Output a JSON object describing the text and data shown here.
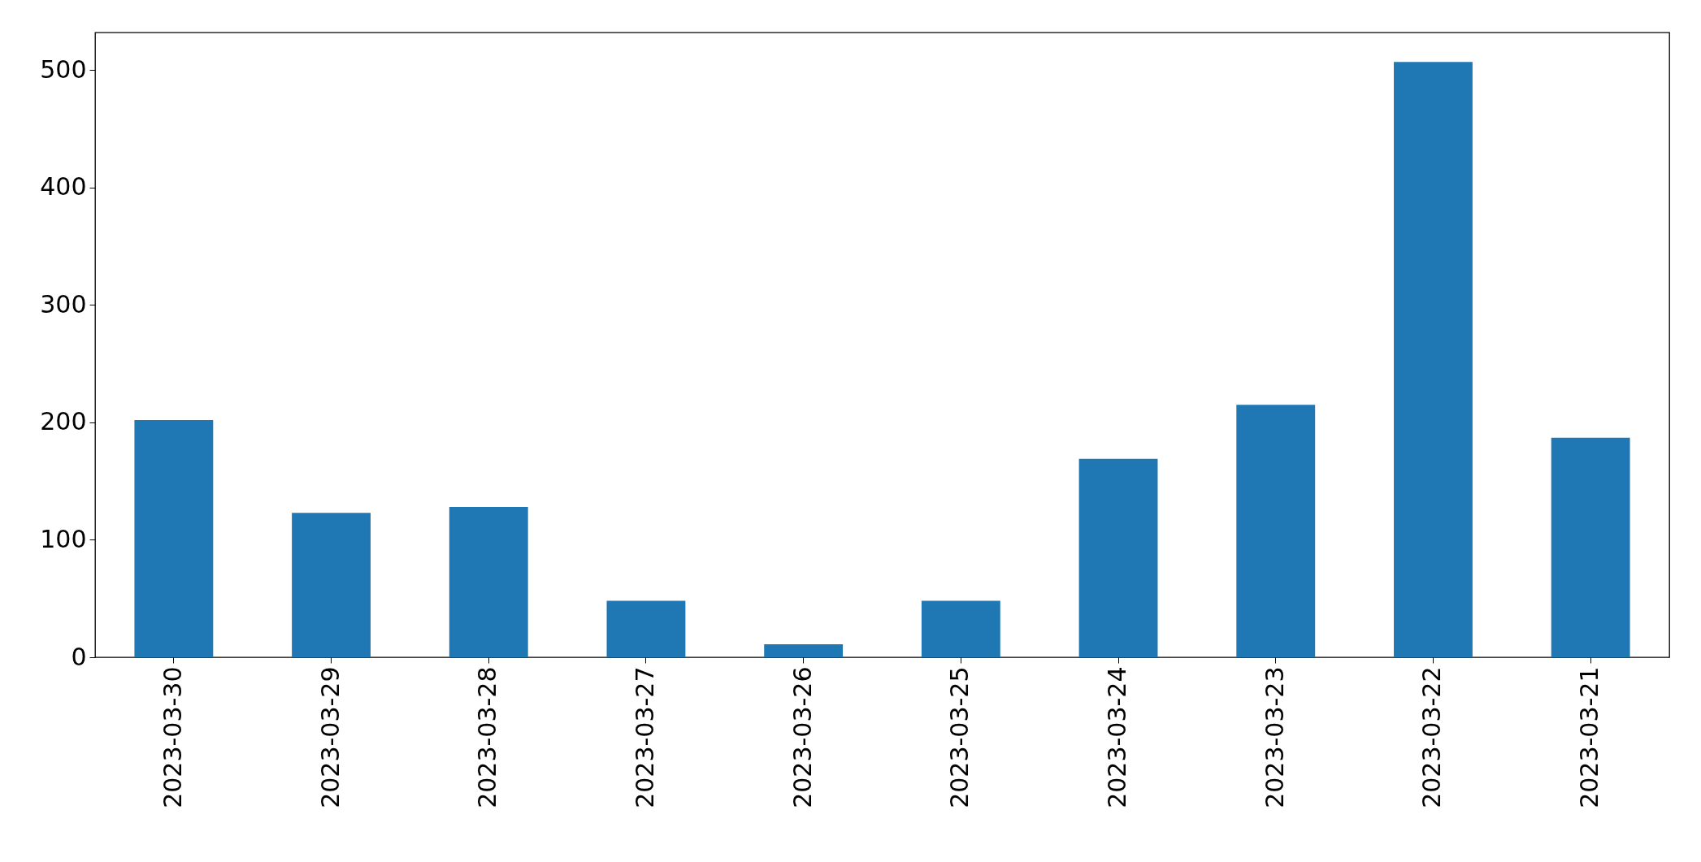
{
  "chart_data": {
    "type": "bar",
    "categories": [
      "2023-03-30",
      "2023-03-29",
      "2023-03-28",
      "2023-03-27",
      "2023-03-26",
      "2023-03-25",
      "2023-03-24",
      "2023-03-23",
      "2023-03-22",
      "2023-03-21"
    ],
    "values": [
      202,
      123,
      128,
      48,
      11,
      48,
      169,
      215,
      507,
      187
    ],
    "color": "#1f77b4",
    "ylim": [
      0,
      532
    ],
    "yticks": [
      0,
      100,
      200,
      300,
      400,
      500
    ],
    "grid": false
  }
}
